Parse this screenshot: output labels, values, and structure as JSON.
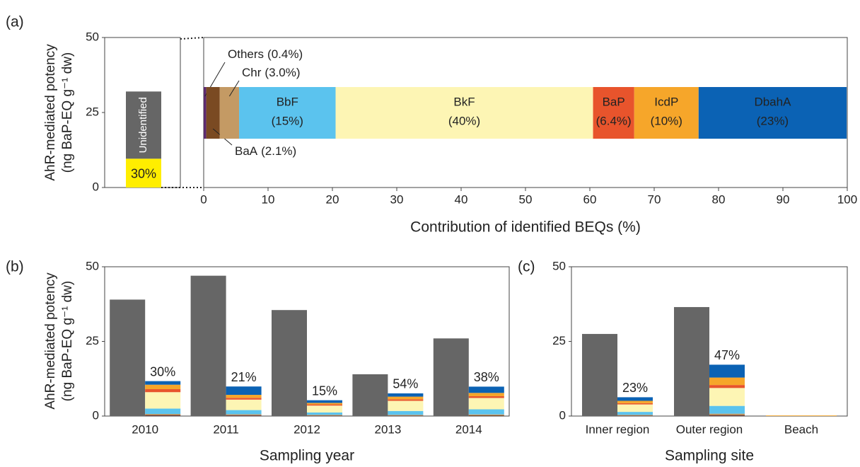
{
  "chart_data": [
    {
      "type": "total-bar",
      "panel": "(a)",
      "ylabel_lines": [
        "AhR-mediated potency",
        "(ng BaP-EQ g⁻¹ dw)"
      ],
      "ylim": [
        0,
        50
      ],
      "yticks": [
        0,
        25,
        50
      ],
      "series": [
        {
          "color": "#ffee00",
          "values": [
            9.6
          ],
          "value_labels": [
            "30%"
          ]
        },
        {
          "name": "Unidentified",
          "color": "#666666",
          "values": [
            22.4
          ]
        }
      ]
    },
    {
      "type": "hbar-composition",
      "xlabel": "Contribution of identified BEQs (%)",
      "xlim": [
        0,
        100
      ],
      "xticks": [
        0,
        10,
        20,
        30,
        40,
        50,
        60,
        70,
        80,
        90,
        100
      ],
      "series": [
        {
          "name": "Others",
          "color": "#5c2a6e",
          "values": [
            0.4
          ],
          "value_labels": [
            "(0.4%)"
          ]
        },
        {
          "name": "BaA",
          "color": "#7a4a22",
          "values": [
            2.1
          ],
          "value_labels": [
            "(2.1%)"
          ]
        },
        {
          "name": "Chr",
          "color": "#c49a64",
          "values": [
            3.0
          ],
          "value_labels": [
            "(3.0%)"
          ]
        },
        {
          "name": "BbF",
          "color": "#5bc3ee",
          "values": [
            15
          ],
          "value_labels": [
            "(15%)"
          ]
        },
        {
          "name": "BkF",
          "color": "#fdf5b4",
          "values": [
            40
          ],
          "value_labels": [
            "(40%)"
          ]
        },
        {
          "name": "BaP",
          "color": "#e8542c",
          "values": [
            6.4
          ],
          "value_labels": [
            "(6.4%)"
          ]
        },
        {
          "name": "IcdP",
          "color": "#f6a62a",
          "values": [
            10
          ],
          "value_labels": [
            "(10%)"
          ]
        },
        {
          "name": "DbahA",
          "color": "#0b62b4",
          "values": [
            23
          ],
          "value_labels": [
            "(23%)"
          ]
        }
      ]
    },
    {
      "type": "grouped-stacked-bar",
      "panel": "(b)",
      "ylabel_lines": [
        "AhR-mediated potency",
        "(ng BaP-EQ g⁻¹ dw)"
      ],
      "xlabel": "Sampling year",
      "categories": [
        "2010",
        "2011",
        "2012",
        "2013",
        "2014"
      ],
      "ylim": [
        0,
        50
      ],
      "yticks": [
        0,
        25,
        50
      ],
      "totals": {
        "color": "#666666",
        "values": [
          39,
          47,
          35.5,
          14,
          26
        ]
      },
      "percent_labels": [
        "30%",
        "21%",
        "15%",
        "54%",
        "38%"
      ],
      "series": [
        {
          "color": "#5c2a6e",
          "values": [
            0.1,
            0.1,
            0.05,
            0.05,
            0.05
          ]
        },
        {
          "color": "#7a4a22",
          "values": [
            0.3,
            0.2,
            0.15,
            0.15,
            0.2
          ]
        },
        {
          "color": "#c49a64",
          "values": [
            0.3,
            0.3,
            0.2,
            0.2,
            0.3
          ]
        },
        {
          "color": "#5bc3ee",
          "values": [
            1.8,
            1.4,
            0.8,
            1.3,
            1.7
          ]
        },
        {
          "color": "#fdf5b4",
          "values": [
            5.5,
            3.5,
            2.3,
            3.4,
            3.8
          ]
        },
        {
          "color": "#e8542c",
          "values": [
            1.0,
            0.6,
            0.4,
            0.5,
            0.6
          ]
        },
        {
          "color": "#f6a62a",
          "values": [
            1.5,
            1.0,
            0.5,
            0.9,
            1.1
          ]
        },
        {
          "color": "#0b62b4",
          "values": [
            1.2,
            2.8,
            0.9,
            1.1,
            2.1
          ]
        }
      ]
    },
    {
      "type": "grouped-stacked-bar",
      "panel": "(c)",
      "xlabel": "Sampling site",
      "categories": [
        "Inner region",
        "Outer region",
        "Beach"
      ],
      "ylim": [
        0,
        50
      ],
      "yticks": [
        0,
        25,
        50
      ],
      "totals": {
        "color": "#666666",
        "values": [
          27.5,
          36.5,
          null
        ]
      },
      "percent_labels": [
        "23%",
        "47%",
        null
      ],
      "series": [
        {
          "color": "#5c2a6e",
          "values": [
            0.05,
            0.1,
            0
          ]
        },
        {
          "color": "#7a4a22",
          "values": [
            0.15,
            0.3,
            0
          ]
        },
        {
          "color": "#c49a64",
          "values": [
            0.2,
            0.4,
            0
          ]
        },
        {
          "color": "#5bc3ee",
          "values": [
            1.0,
            2.6,
            0
          ]
        },
        {
          "color": "#fdf5b4",
          "values": [
            2.5,
            6.0,
            0
          ]
        },
        {
          "color": "#e8542c",
          "values": [
            0.4,
            1.0,
            0
          ]
        },
        {
          "color": "#f6a62a",
          "values": [
            0.8,
            2.5,
            0.2
          ]
        },
        {
          "color": "#0b62b4",
          "values": [
            1.2,
            4.3,
            0
          ]
        }
      ]
    }
  ]
}
